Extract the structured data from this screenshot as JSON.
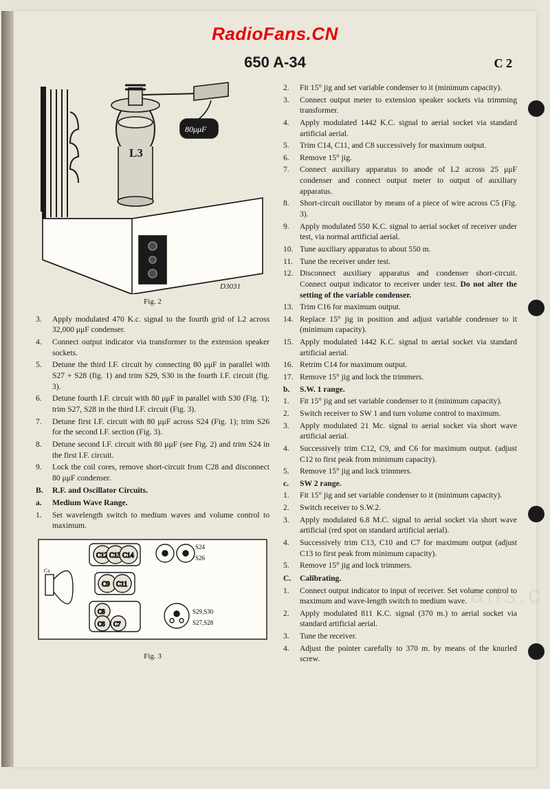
{
  "watermark": "RadioFans.CN",
  "doc_title": "650 A-34",
  "page_code": "C 2",
  "fig2_caption": "Fig. 2",
  "fig3_caption": "Fig. 3",
  "fig2_labels": {
    "l3": "L3",
    "cap": "80μμF",
    "dcode": "D3031"
  },
  "fig3_labels": {
    "c12": "C12",
    "c13": "C13",
    "c14": "C14",
    "c9": "C9",
    "c11": "C11",
    "c8": "C8",
    "c6": "C6",
    "c7": "C7",
    "s24": "S24",
    "s26": "S26",
    "s2930": "S29,S30",
    "s2728": "S27,S28",
    "cs": "Cs"
  },
  "left_items": [
    {
      "n": "3.",
      "t": "Apply modulated 470 K.c. signal to the fourth grid of L2 across 32,000 μμF condenser."
    },
    {
      "n": "4.",
      "t": "Connect output indicator via transformer to the extension speaker sockets."
    },
    {
      "n": "5.",
      "t": "Detune the third I.F. circuit by connecting 80 μμF in parallel with S27 + S28 (fig. 1) and trim S29, S30 in the fourth I.F. circuit (fig. 3)."
    },
    {
      "n": "6.",
      "t": "Detune fourth I.F. circuit with 80 μμF in parallel with S30 (Fig. 1); trim S27, S28 in the third I.F. circuit (Fig. 3)."
    },
    {
      "n": "7.",
      "t": "Detune first I.F. circuit with 80 μμF across S24 (Fig. 1); trim S26 for the second I.F. section (Fig. 3)."
    },
    {
      "n": "8.",
      "t": "Detune second I.F. circuit with 80 μμF (see Fig. 2) and trim S24 in the first I.F. circuit."
    },
    {
      "n": "9.",
      "t": "Lock the coil cores, remove short-circuit from C28 and disconnect 80 μμF condenser."
    }
  ],
  "left_section_B": {
    "n": "B.",
    "t": "R.F. and Oscillator Circuits."
  },
  "left_sub_a": {
    "n": "a.",
    "t": "Medium Wave Range."
  },
  "left_a_items": [
    {
      "n": "1.",
      "t": "Set wavelength switch to medium waves and volume control to maximum."
    }
  ],
  "right_items_top": [
    {
      "n": "2.",
      "t": "Fit 15° jig and set variable condenser to it (minimum capacity)."
    },
    {
      "n": "3.",
      "t": "Connect output meter to extension speaker sockets via trimming transformer."
    },
    {
      "n": "4.",
      "t": "Apply modulated 1442 K.C. signal to aerial socket via standard artificial aerial."
    },
    {
      "n": "5.",
      "t": "Trim C14, C11, and C8 successively for maximum output."
    },
    {
      "n": "6.",
      "t": "Remove 15° jig."
    },
    {
      "n": "7.",
      "t": "Connect auxiliary apparatus to anode of L2 across 25 μμF condenser and connect output meter to output of auxiliary apparatus."
    },
    {
      "n": "8.",
      "t": "Short-circuit oscillator by means of a piece of wire across C5 (Fig. 3)."
    },
    {
      "n": "9.",
      "t": "Apply modulated 550 K.C. signal to aerial socket of receiver under test, via normal artificial aerial."
    },
    {
      "n": "10.",
      "t": "Tune auxiliary apparatus to about 550 m."
    },
    {
      "n": "11.",
      "t": "Tune the receiver under test."
    },
    {
      "n": "12.",
      "t_pre": "Disconnect auxiliary apparatus and condenser short-circuit. Connect output indicator to receiver under test. ",
      "t_bold": "Do not alter the setting of the variable condenser."
    },
    {
      "n": "13.",
      "t": "Trim C16 for maximum output."
    },
    {
      "n": "14.",
      "t": "Replace 15° jig in position and adjust variable condenser to it (minimum capacity)."
    },
    {
      "n": "15.",
      "t": "Apply modulated 1442 K.C. signal to aerial socket via standard artificial aerial."
    },
    {
      "n": "16.",
      "t": "Retrim C14 for maximum output."
    },
    {
      "n": "17.",
      "t": "Remove 15° jig and lock the trimmers."
    }
  ],
  "right_sub_b": {
    "n": "b.",
    "t": "S.W. 1 range."
  },
  "right_b_items": [
    {
      "n": "1.",
      "t": "Fit 15° jig and set variable condenser to it (minimum capacity)."
    },
    {
      "n": "2.",
      "t": "Switch receiver to SW 1 and turn volume control to maximum."
    },
    {
      "n": "3.",
      "t": "Apply modulated 21 Mc. signal to aerial socket via short wave artificial aerial."
    },
    {
      "n": "4.",
      "t": "Successively trim C12, C9, and C6 for maximum output. (adjust C12 to first peak from minimum capacity)."
    },
    {
      "n": "5.",
      "t": "Remove 15° jig and lock trimmers."
    }
  ],
  "right_sub_c": {
    "n": "c.",
    "t": "SW 2 range."
  },
  "right_c_items": [
    {
      "n": "1.",
      "t": "Fit 15° jig and set variable condenser to it (minimum capacity)."
    },
    {
      "n": "2.",
      "t": "Switch receiver to S.W.2."
    },
    {
      "n": "3.",
      "t": "Apply modulated 6.8 M.C. signal to aerial socket via short wave artificial (red spot on standard artificial aerial)."
    },
    {
      "n": "4.",
      "t": "Successively trim C13, C10 and C7 for maximum output (adjust C13 to first peak from minimum capacity)."
    },
    {
      "n": "5.",
      "t": "Remove 15° jig and lock trimmers."
    }
  ],
  "right_section_C": {
    "n": "C.",
    "t": "Calibrating."
  },
  "right_C_items": [
    {
      "n": "1.",
      "t": "Connect output indicator to input of receiver. Set volume control to maximum and wave-length switch to medium wave."
    },
    {
      "n": "2.",
      "t": "Apply modulated 811 K.C. signal (370 m.) to aerial socket via standard artificial aerial."
    },
    {
      "n": "3.",
      "t": "Tune the receiver."
    },
    {
      "n": "4.",
      "t": "Adjust the pointer carefully to 370 m. by means of the knurled screw."
    }
  ]
}
